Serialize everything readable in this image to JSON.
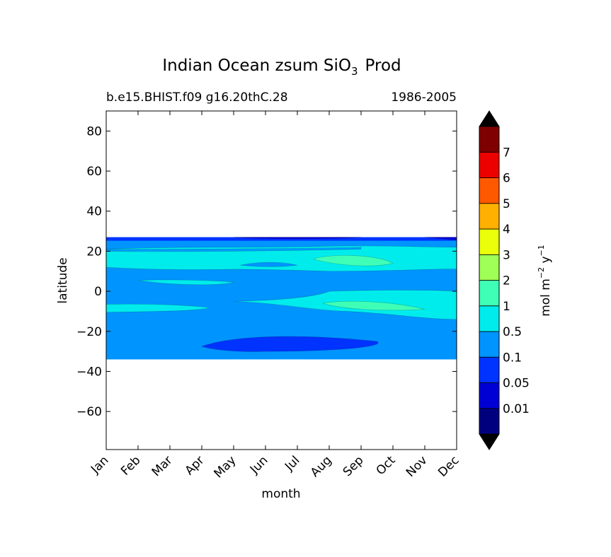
{
  "chart_data": {
    "type": "heatmap",
    "title_main": "Indian Ocean zsum SiO",
    "title_sub": "3",
    "title_tail": "Prod",
    "case_label": "b.e15.BHIST.f09 g16.20thC.28",
    "period_label": "1986-2005",
    "xlabel": "month",
    "ylabel": "latitude",
    "x_ticks": [
      "Jan",
      "Feb",
      "Mar",
      "Apr",
      "May",
      "Jun",
      "Jul",
      "Aug",
      "Sep",
      "Oct",
      "Nov",
      "Dec"
    ],
    "y_ticks": [
      80,
      60,
      40,
      20,
      0,
      -20,
      -40,
      -60
    ],
    "ylim": [
      -79,
      90
    ],
    "xlim": [
      1,
      12
    ],
    "data_lat_range": [
      -34,
      27
    ],
    "colorbar": {
      "label_main": "mol m",
      "label_exp1": "−2",
      "label_mid": " y",
      "label_exp2": "−1",
      "levels": [
        "0.01",
        "0.05",
        "0.1",
        "0.5",
        "1",
        "2",
        "3",
        "4",
        "5",
        "6",
        "7"
      ],
      "colors": [
        "#00007f",
        "#0000d5",
        "#0033ff",
        "#0094ff",
        "#00ecec",
        "#3fffb7",
        "#a0ff56",
        "#ecff0a",
        "#ffb000",
        "#ff5900",
        "#ec0000",
        "#7f0000"
      ],
      "extend": "both"
    },
    "field_bands": [
      {
        "name": "0.1-0.5",
        "color": "#0094ff",
        "lat_from": -34,
        "lat_to": 27
      },
      {
        "name": "0.05-0.1",
        "color": "#0033ff",
        "lat_from": 25.5,
        "lat_to": 27
      },
      {
        "name": "0.5-1",
        "color": "#00ecec",
        "lat_from": 10,
        "lat_to": 21
      },
      {
        "name": "1-2",
        "color": "#3fffb7",
        "lat_from": 12,
        "lat_to": 18
      }
    ]
  }
}
